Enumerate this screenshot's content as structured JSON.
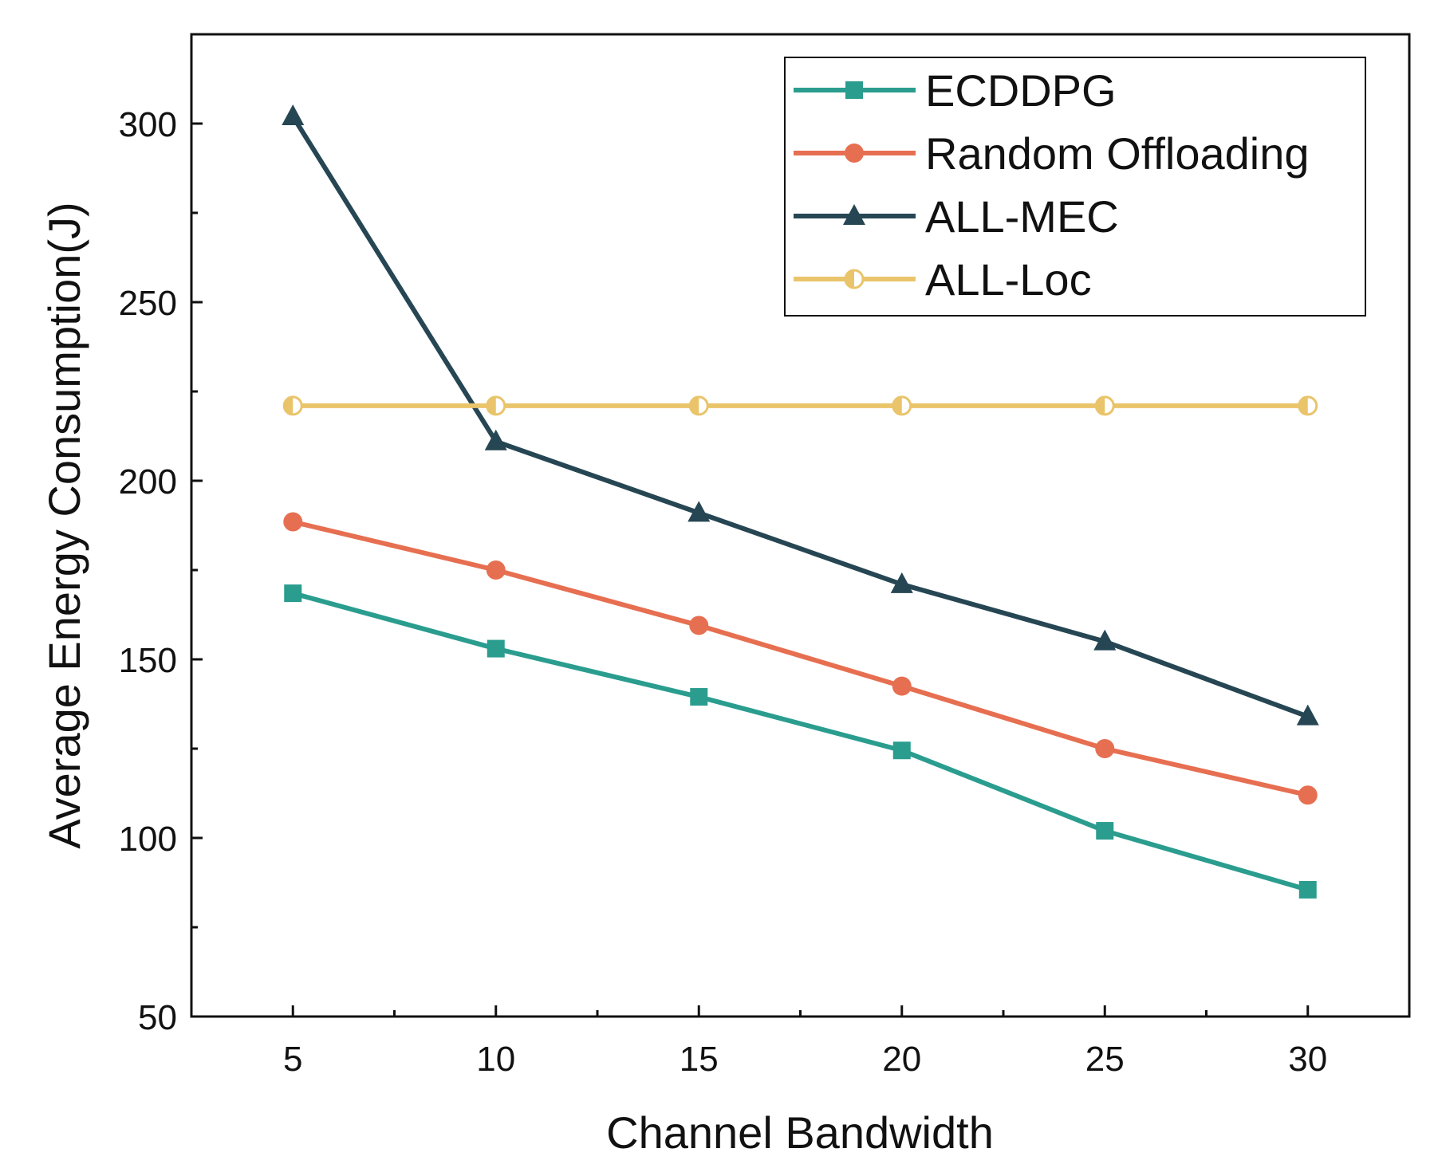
{
  "chart_data": {
    "type": "line",
    "title": "",
    "xlabel": "Channel Bandwidth",
    "ylabel": "Average Energy  Consumption(J)",
    "x": [
      5,
      10,
      15,
      20,
      25,
      30
    ],
    "xlim": [
      2.5,
      32.5
    ],
    "ylim": [
      50,
      325
    ],
    "xticks": [
      "5",
      "10",
      "15",
      "20",
      "25",
      "30"
    ],
    "yticks": [
      "50",
      "100",
      "150",
      "200",
      "250",
      "300"
    ],
    "grid": false,
    "legend_position": "top-right",
    "series": [
      {
        "name": "ECDDPG",
        "color": "#2a9d8f",
        "marker": "square",
        "values": [
          168.5,
          153,
          139.5,
          124.5,
          102,
          85.5
        ]
      },
      {
        "name": "Random Offloading",
        "color": "#e76f51",
        "marker": "circle",
        "values": [
          188.5,
          175,
          159.5,
          142.5,
          125,
          112
        ]
      },
      {
        "name": "ALL-MEC",
        "color": "#264653",
        "marker": "triangle",
        "values": [
          302,
          211,
          191,
          171,
          155,
          134
        ]
      },
      {
        "name": "ALL-Loc",
        "color": "#e9c46a",
        "marker": "half-circle",
        "values": [
          221,
          221,
          221,
          221,
          221,
          221
        ]
      }
    ]
  }
}
